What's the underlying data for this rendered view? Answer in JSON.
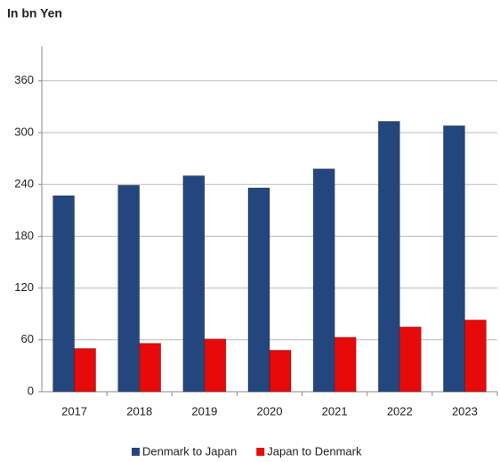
{
  "chart_data": {
    "type": "bar",
    "title": "In bn Yen",
    "categories": [
      "2017",
      "2018",
      "2019",
      "2020",
      "2021",
      "2022",
      "2023"
    ],
    "series": [
      {
        "name": "Denmark to Japan",
        "color": "#24467f",
        "values": [
          227,
          239,
          250,
          236,
          258,
          313,
          308
        ]
      },
      {
        "name": "Japan to Denmark",
        "color": "#e60a0a",
        "values": [
          50,
          56,
          61,
          48,
          63,
          75,
          83
        ]
      }
    ],
    "ylim": [
      0,
      400
    ],
    "yticks": [
      0,
      60,
      120,
      180,
      240,
      300,
      360
    ],
    "grid": true,
    "legend": "bottom"
  }
}
